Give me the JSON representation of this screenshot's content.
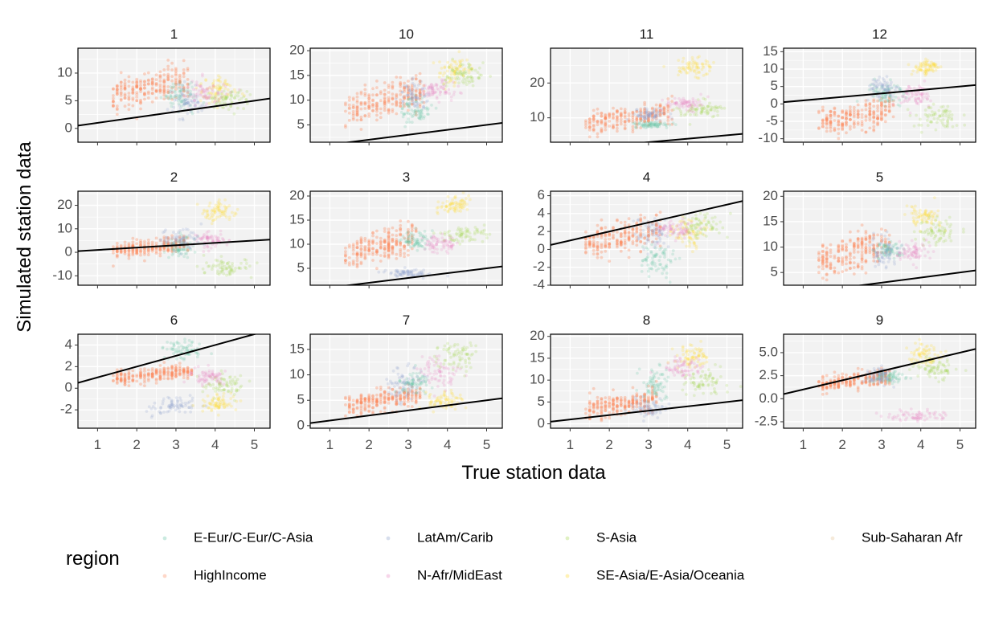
{
  "chart_data": {
    "type": "scatter",
    "xlabel": "True station data",
    "ylabel": "Simulated station data",
    "x_ticks": [
      1,
      2,
      3,
      4,
      5
    ],
    "xlim": [
      0.5,
      5.4
    ],
    "reference_line": "identity (y = x)",
    "legend": {
      "title": "region",
      "placement": "bottom",
      "entries": [
        {
          "name": "E-Eur/C-Eur/C-Asia",
          "color": "#66c2a5"
        },
        {
          "name": "HighIncome",
          "color": "#fc8d62"
        },
        {
          "name": "LatAm/Carib",
          "color": "#8da0cb"
        },
        {
          "name": "N-Afr/MidEast",
          "color": "#e78ac3"
        },
        {
          "name": "S-Asia",
          "color": "#a6d854"
        },
        {
          "name": "SE-Asia/E-Asia/Oceania",
          "color": "#ffd92f"
        },
        {
          "name": "Sub-Saharan Afr",
          "color": "#e5c494"
        }
      ]
    },
    "panels": [
      {
        "label": "1",
        "ylim": [
          -2.5,
          14.5
        ],
        "y_ticks": [
          "0",
          "5",
          "10"
        ],
        "y_tick_values": [
          0,
          5,
          10
        ],
        "clusters": [
          {
            "region": "HighIncome",
            "x": [
              1.4,
              3.3
            ],
            "y": [
              3,
              12
            ]
          },
          {
            "region": "E-Eur/C-Eur/C-Asia",
            "x": [
              2.6,
              3.6
            ],
            "y": [
              3,
              9
            ]
          },
          {
            "region": "LatAm/Carib",
            "x": [
              2.8,
              3.8
            ],
            "y": [
              2,
              8
            ]
          },
          {
            "region": "SE-Asia/E-Asia/Oceania",
            "x": [
              3.5,
              4.6
            ],
            "y": [
              4,
              10
            ]
          },
          {
            "region": "S-Asia",
            "x": [
              3.7,
              4.9
            ],
            "y": [
              3,
              8
            ]
          },
          {
            "region": "N-Afr/MidEast",
            "x": [
              3.2,
              4.4
            ],
            "y": [
              4,
              9
            ]
          }
        ]
      },
      {
        "label": "10",
        "ylim": [
          1.5,
          20.5
        ],
        "y_ticks": [
          "5",
          "10",
          "15",
          "20"
        ],
        "y_tick_values": [
          5,
          10,
          15,
          20
        ],
        "clusters": [
          {
            "region": "HighIncome",
            "x": [
              1.4,
              3.4
            ],
            "y": [
              5,
              15
            ]
          },
          {
            "region": "E-Eur/C-Eur/C-Asia",
            "x": [
              2.8,
              3.6
            ],
            "y": [
              5,
              11
            ]
          },
          {
            "region": "LatAm/Carib",
            "x": [
              2.7,
              3.6
            ],
            "y": [
              8,
              14
            ]
          },
          {
            "region": "SE-Asia/E-Asia/Oceania",
            "x": [
              3.6,
              4.8
            ],
            "y": [
              13,
              19
            ]
          },
          {
            "region": "S-Asia",
            "x": [
              3.9,
              5.0
            ],
            "y": [
              12,
              18
            ]
          },
          {
            "region": "N-Afr/MidEast",
            "x": [
              3.2,
              4.2
            ],
            "y": [
              10,
              14
            ]
          }
        ]
      },
      {
        "label": "11",
        "ylim": [
          3,
          30
        ],
        "y_ticks": [
          "10",
          "20"
        ],
        "y_tick_values": [
          10,
          20
        ],
        "clusters": [
          {
            "region": "HighIncome",
            "x": [
              1.4,
              3.6
            ],
            "y": [
              5,
              15
            ]
          },
          {
            "region": "E-Eur/C-Eur/C-Asia",
            "x": [
              2.5,
              3.6
            ],
            "y": [
              7,
              9
            ]
          },
          {
            "region": "LatAm/Carib",
            "x": [
              2.6,
              3.4
            ],
            "y": [
              9,
              13
            ]
          },
          {
            "region": "SE-Asia/E-Asia/Oceania",
            "x": [
              3.6,
              4.7
            ],
            "y": [
              21,
              28
            ]
          },
          {
            "region": "S-Asia",
            "x": [
              3.8,
              5.0
            ],
            "y": [
              10,
              15
            ]
          },
          {
            "region": "N-Afr/MidEast",
            "x": [
              3.4,
              4.4
            ],
            "y": [
              12,
              16
            ]
          }
        ]
      },
      {
        "label": "12",
        "ylim": [
          -11,
          16
        ],
        "y_ticks": [
          "-10",
          "-5",
          "0",
          "5",
          "10",
          "15"
        ],
        "y_tick_values": [
          -10,
          -5,
          0,
          5,
          10,
          15
        ],
        "clusters": [
          {
            "region": "HighIncome",
            "x": [
              1.4,
              3.3
            ],
            "y": [
              -9,
              2
            ]
          },
          {
            "region": "E-Eur/C-Eur/C-Asia",
            "x": [
              2.6,
              3.6
            ],
            "y": [
              -2,
              8
            ]
          },
          {
            "region": "LatAm/Carib",
            "x": [
              2.6,
              3.5
            ],
            "y": [
              0,
              8
            ]
          },
          {
            "region": "SE-Asia/E-Asia/Oceania",
            "x": [
              3.7,
              4.6
            ],
            "y": [
              8,
              13
            ]
          },
          {
            "region": "S-Asia",
            "x": [
              3.8,
              5.0
            ],
            "y": [
              -8,
              0
            ]
          },
          {
            "region": "N-Afr/MidEast",
            "x": [
              3.3,
              4.4
            ],
            "y": [
              -1,
              6
            ]
          }
        ]
      },
      {
        "label": "2",
        "ylim": [
          -14,
          26
        ],
        "y_ticks": [
          "-10",
          "0",
          "10",
          "20"
        ],
        "y_tick_values": [
          -10,
          0,
          10,
          20
        ],
        "clusters": [
          {
            "region": "HighIncome",
            "x": [
              1.4,
              3.3
            ],
            "y": [
              -3,
              7
            ]
          },
          {
            "region": "E-Eur/C-Eur/C-Asia",
            "x": [
              2.7,
              3.5
            ],
            "y": [
              -2,
              8
            ]
          },
          {
            "region": "LatAm/Carib",
            "x": [
              2.6,
              3.6
            ],
            "y": [
              0,
              10
            ]
          },
          {
            "region": "SE-Asia/E-Asia/Oceania",
            "x": [
              3.6,
              4.6
            ],
            "y": [
              12,
              22
            ]
          },
          {
            "region": "S-Asia",
            "x": [
              3.6,
              5.0
            ],
            "y": [
              -10,
              -2
            ]
          },
          {
            "region": "N-Afr/MidEast",
            "x": [
              3.4,
              4.4
            ],
            "y": [
              2,
              9
            ]
          }
        ]
      },
      {
        "label": "3",
        "ylim": [
          1.5,
          21
        ],
        "y_ticks": [
          "5",
          "10",
          "15",
          "20"
        ],
        "y_tick_values": [
          5,
          10,
          15,
          20
        ],
        "clusters": [
          {
            "region": "HighIncome",
            "x": [
              1.4,
              3.2
            ],
            "y": [
              5,
              14
            ]
          },
          {
            "region": "E-Eur/C-Eur/C-Asia",
            "x": [
              2.8,
              3.6
            ],
            "y": [
              9,
              13
            ]
          },
          {
            "region": "LatAm/Carib",
            "x": [
              2.4,
              3.6
            ],
            "y": [
              3,
              5
            ]
          },
          {
            "region": "SE-Asia/E-Asia/Oceania",
            "x": [
              3.7,
              4.6
            ],
            "y": [
              16,
              20
            ]
          },
          {
            "region": "S-Asia",
            "x": [
              3.8,
              5.0
            ],
            "y": [
              10,
              14
            ]
          },
          {
            "region": "N-Afr/MidEast",
            "x": [
              3.3,
              4.3
            ],
            "y": [
              8,
              12
            ]
          }
        ]
      },
      {
        "label": "4",
        "ylim": [
          -4,
          6.5
        ],
        "y_ticks": [
          "-4",
          "-2",
          "0",
          "2",
          "4",
          "6"
        ],
        "y_tick_values": [
          -4,
          -2,
          0,
          2,
          4,
          6
        ],
        "clusters": [
          {
            "region": "HighIncome",
            "x": [
              1.4,
              3.3
            ],
            "y": [
              -1,
              4
            ]
          },
          {
            "region": "E-Eur/C-Eur/C-Asia",
            "x": [
              2.7,
              3.7
            ],
            "y": [
              -3.5,
              1
            ]
          },
          {
            "region": "LatAm/Carib",
            "x": [
              2.6,
              3.6
            ],
            "y": [
              0,
              4
            ]
          },
          {
            "region": "SE-Asia/E-Asia/Oceania",
            "x": [
              3.6,
              4.5
            ],
            "y": [
              0,
              4
            ]
          },
          {
            "region": "S-Asia",
            "x": [
              3.8,
              5.0
            ],
            "y": [
              1,
              4
            ]
          },
          {
            "region": "N-Afr/MidEast",
            "x": [
              3.2,
              4.2
            ],
            "y": [
              1,
              3.5
            ]
          }
        ]
      },
      {
        "label": "5",
        "ylim": [
          2.5,
          21
        ],
        "y_ticks": [
          "5",
          "10",
          "15",
          "20"
        ],
        "y_tick_values": [
          5,
          10,
          15,
          20
        ],
        "clusters": [
          {
            "region": "HighIncome",
            "x": [
              1.4,
              3.2
            ],
            "y": [
              4,
              14
            ]
          },
          {
            "region": "E-Eur/C-Eur/C-Asia",
            "x": [
              2.8,
              3.6
            ],
            "y": [
              8,
              11
            ]
          },
          {
            "region": "LatAm/Carib",
            "x": [
              2.6,
              3.5
            ],
            "y": [
              6,
              12
            ]
          },
          {
            "region": "SE-Asia/E-Asia/Oceania",
            "x": [
              3.6,
              4.6
            ],
            "y": [
              13,
              19
            ]
          },
          {
            "region": "S-Asia",
            "x": [
              3.8,
              5.0
            ],
            "y": [
              10,
              16
            ]
          },
          {
            "region": "N-Afr/MidEast",
            "x": [
              3.3,
              4.3
            ],
            "y": [
              7,
              11
            ]
          }
        ]
      },
      {
        "label": "6",
        "ylim": [
          -3.7,
          5
        ],
        "y_ticks": [
          "-2",
          "0",
          "2",
          "4"
        ],
        "y_tick_values": [
          -2,
          0,
          2,
          4
        ],
        "clusters": [
          {
            "region": "HighIncome",
            "x": [
              1.4,
              3.4
            ],
            "y": [
              0.3,
              2.2
            ]
          },
          {
            "region": "E-Eur/C-Eur/C-Asia",
            "x": [
              2.7,
              3.7
            ],
            "y": [
              2.5,
              4.6
            ]
          },
          {
            "region": "LatAm/Carib",
            "x": [
              2.3,
              3.7
            ],
            "y": [
              -2.5,
              -0.7
            ]
          },
          {
            "region": "SE-Asia/E-Asia/Oceania",
            "x": [
              3.6,
              4.6
            ],
            "y": [
              -2.2,
              -0.5
            ]
          },
          {
            "region": "S-Asia",
            "x": [
              3.5,
              4.8
            ],
            "y": [
              -0.8,
              1.5
            ]
          },
          {
            "region": "N-Afr/MidEast",
            "x": [
              3.3,
              4.3
            ],
            "y": [
              0.3,
              1.8
            ]
          }
        ]
      },
      {
        "label": "7",
        "ylim": [
          -0.5,
          18
        ],
        "y_ticks": [
          "0",
          "5",
          "10",
          "15"
        ],
        "y_tick_values": [
          0,
          5,
          10,
          15
        ],
        "clusters": [
          {
            "region": "HighIncome",
            "x": [
              1.4,
              3.3
            ],
            "y": [
              2,
              8
            ]
          },
          {
            "region": "E-Eur/C-Eur/C-Asia",
            "x": [
              2.7,
              3.6
            ],
            "y": [
              6,
              11
            ]
          },
          {
            "region": "LatAm/Carib",
            "x": [
              2.4,
              3.4
            ],
            "y": [
              4,
              12
            ]
          },
          {
            "region": "SE-Asia/E-Asia/Oceania",
            "x": [
              3.4,
              4.5
            ],
            "y": [
              3,
              7
            ]
          },
          {
            "region": "S-Asia",
            "x": [
              3.6,
              4.8
            ],
            "y": [
              10,
              17
            ]
          },
          {
            "region": "N-Afr/MidEast",
            "x": [
              3.2,
              4.3
            ],
            "y": [
              7,
              14
            ]
          }
        ]
      },
      {
        "label": "8",
        "ylim": [
          -1,
          20.5
        ],
        "y_ticks": [
          "0",
          "5",
          "10",
          "15",
          "20"
        ],
        "y_tick_values": [
          0,
          5,
          10,
          15,
          20
        ],
        "clusters": [
          {
            "region": "HighIncome",
            "x": [
              1.4,
              3.2
            ],
            "y": [
              1,
              8
            ]
          },
          {
            "region": "E-Eur/C-Eur/C-Asia",
            "x": [
              2.7,
              3.6
            ],
            "y": [
              5,
              13
            ]
          },
          {
            "region": "LatAm/Carib",
            "x": [
              2.5,
              3.5
            ],
            "y": [
              1,
              6
            ]
          },
          {
            "region": "SE-Asia/E-Asia/Oceania",
            "x": [
              3.6,
              4.6
            ],
            "y": [
              12,
              18
            ]
          },
          {
            "region": "S-Asia",
            "x": [
              3.8,
              5.0
            ],
            "y": [
              6,
              13
            ]
          },
          {
            "region": "N-Afr/MidEast",
            "x": [
              3.3,
              4.4
            ],
            "y": [
              10,
              16
            ]
          }
        ]
      },
      {
        "label": "9",
        "ylim": [
          -3.2,
          7
        ],
        "y_ticks": [
          "-2.5",
          "0.0",
          "2.5",
          "5.0"
        ],
        "y_tick_values": [
          -2.5,
          0,
          2.5,
          5
        ],
        "clusters": [
          {
            "region": "HighIncome",
            "x": [
              1.4,
              3.2
            ],
            "y": [
              0.8,
              3.2
            ]
          },
          {
            "region": "E-Eur/C-Eur/C-Asia",
            "x": [
              2.7,
              3.6
            ],
            "y": [
              1.5,
              3.2
            ]
          },
          {
            "region": "LatAm/Carib",
            "x": [
              2.5,
              3.4
            ],
            "y": [
              1.5,
              3.5
            ]
          },
          {
            "region": "SE-Asia/E-Asia/Oceania",
            "x": [
              3.6,
              4.6
            ],
            "y": [
              3.5,
              6
            ]
          },
          {
            "region": "S-Asia",
            "x": [
              3.8,
              5.0
            ],
            "y": [
              2,
              4.5
            ]
          },
          {
            "region": "N-Afr/MidEast",
            "x": [
              3.0,
              4.8
            ],
            "y": [
              -2.5,
              -1.2
            ]
          }
        ]
      }
    ]
  }
}
